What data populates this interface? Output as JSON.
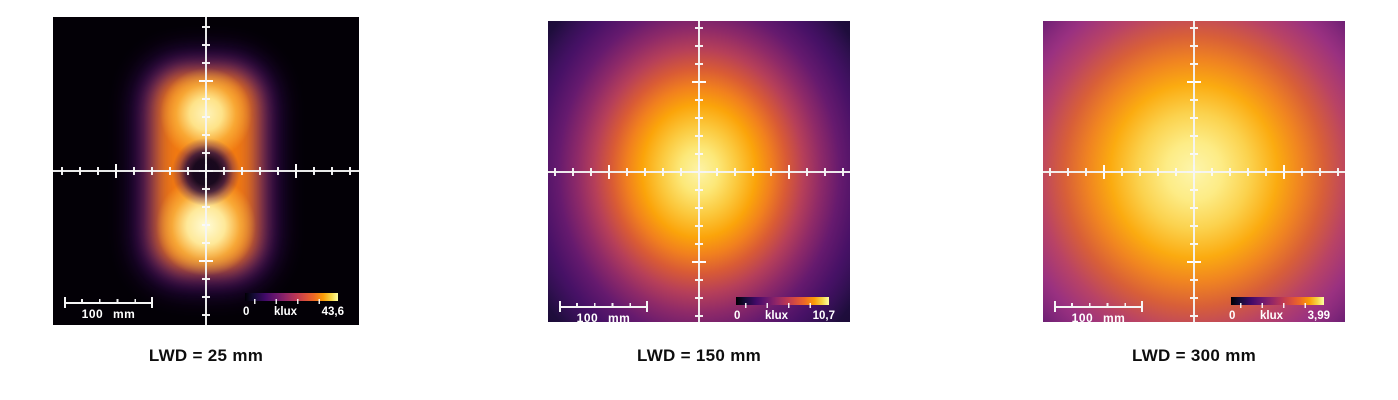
{
  "figures": [
    {
      "caption": "LWD = 25 mm",
      "scale_bar_label": "100 mm",
      "colorbar": {
        "min_label": "0",
        "unit_label": "klux",
        "max_label": "43,6"
      }
    },
    {
      "caption": "LWD = 150 mm",
      "scale_bar_label": "100 mm",
      "colorbar": {
        "min_label": "0",
        "unit_label": "klux",
        "max_label": "10,7"
      }
    },
    {
      "caption": "LWD = 300 mm",
      "scale_bar_label": "100 mm",
      "colorbar": {
        "min_label": "0",
        "unit_label": "klux",
        "max_label": "3,99"
      }
    }
  ],
  "colors": {
    "colormap": "inferno",
    "colormap_stops": [
      "#000004",
      "#160b39",
      "#420a68",
      "#6a176e",
      "#932667",
      "#bc3754",
      "#dd513a",
      "#ed6925",
      "#fb9b06",
      "#f6d746",
      "#fcffa4"
    ],
    "axis_color": "#f4f4f4",
    "overlay_label_color": "#ffffff",
    "caption_color": "#0d0d0d",
    "panel1_background": "#030006"
  },
  "chart_data": [
    {
      "type": "heatmap",
      "title": "LWD = 25 mm",
      "unit": "klux",
      "colorbar": {
        "min": 0,
        "max": 43.6,
        "min_label": "0",
        "unit_label": "klux",
        "max_label": "43,6",
        "colormap": "inferno"
      },
      "scale_bar": {
        "label": "100 mm",
        "length_mm": 100
      },
      "axes": {
        "style": "centered crosshair",
        "minor_tick_mm": 20,
        "major_tick_mm": 100
      },
      "peak_klux": 43.6,
      "distribution": "Two stacked bright rectangular lobes (~110 mm wide, together ~250 mm tall) centered on the origin with a dark circular null (~45 mm diameter) at the crosshair center; surrounding field near zero (black)."
    },
    {
      "type": "heatmap",
      "title": "LWD = 150 mm",
      "unit": "klux",
      "colorbar": {
        "min": 0,
        "max": 10.7,
        "min_label": "0",
        "unit_label": "klux",
        "max_label": "10,7",
        "colormap": "inferno"
      },
      "scale_bar": {
        "label": "100 mm",
        "length_mm": 100
      },
      "axes": {
        "style": "centered crosshair",
        "minor_tick_mm": 20,
        "major_tick_mm": 100
      },
      "peak_klux": 10.7,
      "distribution": "Single vertically elongated elliptical spot (~180 mm x 230 mm) centered at the origin, smoothly falling off to a dark purple background."
    },
    {
      "type": "heatmap",
      "title": "LWD = 300 mm",
      "unit": "klux",
      "colorbar": {
        "min": 0,
        "max": 3.99,
        "min_label": "0",
        "unit_label": "klux",
        "max_label": "3,99",
        "colormap": "inferno"
      },
      "scale_bar": {
        "label": "100 mm",
        "length_mm": 100
      },
      "axes": {
        "style": "centered crosshair",
        "minor_tick_mm": 20,
        "major_tick_mm": 100
      },
      "peak_klux": 3.99,
      "distribution": "Large nearly circular spot (~260 mm diameter) centered at the origin with broad smooth falloff to a magenta-purple background."
    }
  ]
}
